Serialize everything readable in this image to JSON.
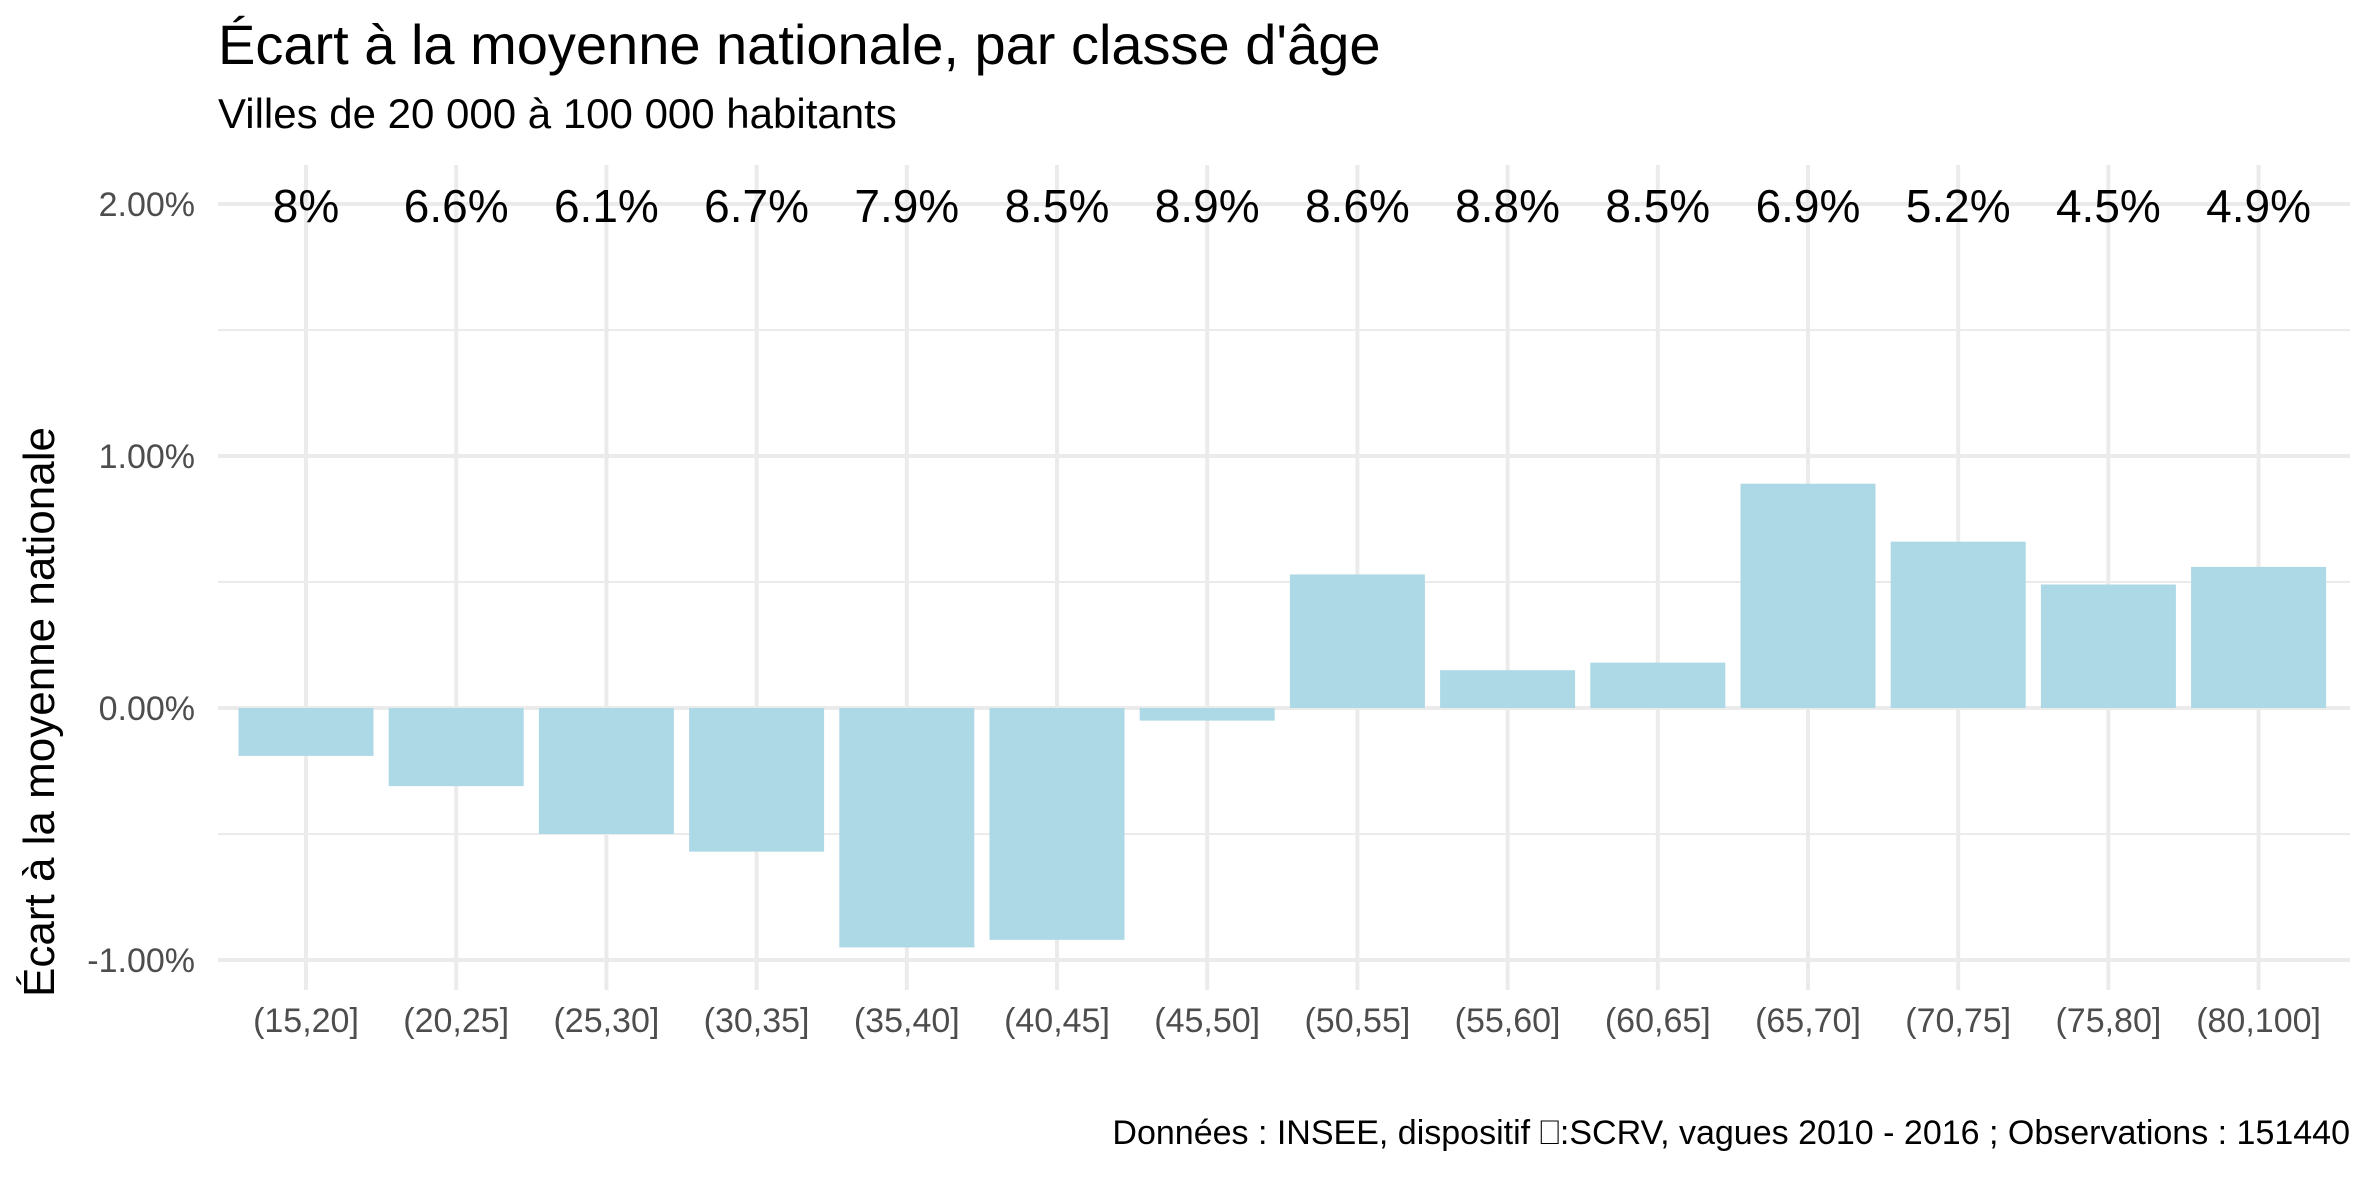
{
  "chart_data": {
    "type": "bar",
    "title": "Écart à la moyenne nationale, par classe d'âge",
    "subtitle": "Villes de 20 000 à 100 000 habitants",
    "xlabel": "",
    "ylabel": "Écart à la moyenne nationale",
    "caption": "Données : INSEE, dispositif ⎕:SCRV, vagues 2010 - 2016 ; Observations : 151440",
    "categories": [
      "(15,20]",
      "(20,25]",
      "(25,30]",
      "(30,35]",
      "(35,40]",
      "(40,45]",
      "(45,50]",
      "(50,55]",
      "(55,60]",
      "(60,65]",
      "(65,70]",
      "(70,75]",
      "(75,80]",
      "(80,100]"
    ],
    "values": [
      -0.19,
      -0.31,
      -0.5,
      -0.57,
      -0.95,
      -0.92,
      -0.05,
      0.53,
      0.15,
      0.18,
      0.89,
      0.66,
      0.49,
      0.56
    ],
    "value_unit": "percentage points",
    "bar_labels": [
      "8%",
      "6.6%",
      "6.1%",
      "6.7%",
      "7.9%",
      "8.5%",
      "8.9%",
      "8.6%",
      "8.8%",
      "8.5%",
      "6.9%",
      "5.2%",
      "4.5%",
      "4.9%"
    ],
    "y_ticks": [
      -1,
      0,
      1,
      2
    ],
    "y_tick_labels": [
      "-1.00%",
      "0.00%",
      "1.00%",
      "2.00%"
    ],
    "ylim": [
      -1.1,
      2.15
    ],
    "grid": true,
    "legend": "none",
    "bar_color": "#add8e6",
    "grid_color": "#ebebeb"
  }
}
